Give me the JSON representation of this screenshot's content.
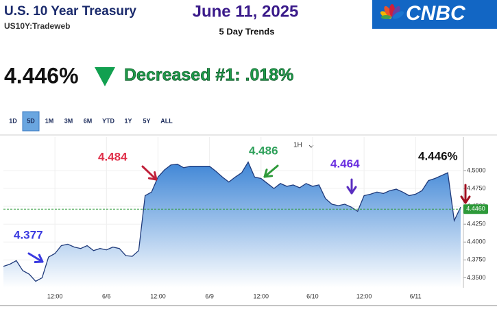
{
  "header": {
    "title": "U.S. 10 Year Treasury",
    "symbol": "US10Y:Tradeweb",
    "date": "June 11, 2025",
    "subtitle": "5 Day Trends",
    "logo": "CNBC",
    "price": "4.446%",
    "change": "Decreased #1:  .018%"
  },
  "ranges": [
    "1D",
    "5D",
    "1M",
    "3M",
    "6M",
    "YTD",
    "1Y",
    "5Y",
    "ALL"
  ],
  "active_range": "5D",
  "interval": "1H",
  "chart_data": {
    "type": "line",
    "categories": [
      null,
      null,
      null,
      null,
      null,
      null,
      null,
      null,
      "12:00",
      null,
      null,
      null,
      null,
      null,
      null,
      null,
      "6/6",
      null,
      null,
      null,
      null,
      null,
      null,
      null,
      "12:00",
      null,
      null,
      null,
      null,
      null,
      null,
      null,
      "6/9",
      null,
      null,
      null,
      null,
      null,
      null,
      null,
      "12:00",
      null,
      null,
      null,
      null,
      null,
      null,
      null,
      "6/10",
      null,
      null,
      null,
      null,
      null,
      null,
      null,
      "12:00",
      null,
      null,
      null,
      null,
      null,
      null,
      null,
      "6/11",
      null,
      null,
      null,
      null,
      null,
      null,
      null
    ],
    "series": [
      {
        "name": "US10Y",
        "color": "#1f3a7a",
        "values": [
          4.366,
          4.369,
          4.374,
          4.36,
          4.355,
          4.345,
          4.35,
          4.379,
          4.384,
          4.395,
          4.397,
          4.393,
          4.391,
          4.395,
          4.388,
          4.391,
          4.389,
          4.393,
          4.391,
          4.381,
          4.38,
          4.388,
          4.465,
          4.47,
          4.491,
          4.501,
          4.508,
          4.509,
          4.504,
          4.506,
          4.506,
          4.506,
          4.506,
          4.499,
          4.491,
          4.484,
          4.491,
          4.497,
          4.512,
          4.491,
          4.489,
          4.482,
          4.475,
          4.482,
          4.478,
          4.48,
          4.476,
          4.482,
          4.478,
          4.48,
          4.461,
          4.453,
          4.451,
          4.453,
          4.449,
          4.443,
          4.465,
          4.467,
          4.47,
          4.468,
          4.472,
          4.474,
          4.47,
          4.465,
          4.467,
          4.472,
          4.486,
          4.489,
          4.493,
          4.497,
          4.43,
          4.449
        ]
      }
    ],
    "ylim": [
      4.336,
      4.547
    ],
    "yticks": [
      {
        "value": 4.35,
        "label": "4.3500"
      },
      {
        "value": 4.375,
        "label": "4.3750"
      },
      {
        "value": 4.4,
        "label": "4.4000"
      },
      {
        "value": 4.425,
        "label": "4.4250"
      },
      {
        "value": 4.45,
        "label": "4.4500"
      },
      {
        "value": 4.475,
        "label": "4.4750"
      },
      {
        "value": 4.5,
        "label": "4.5000"
      }
    ],
    "current": {
      "value": 4.446,
      "label": "4.4460",
      "color": "#2e9a3a"
    },
    "annotations": [
      {
        "text": "4.377",
        "color": "#3a3ae0"
      },
      {
        "text": "4.484",
        "color": "#e0304a"
      },
      {
        "text": "4.486",
        "color": "#2ea05a"
      },
      {
        "text": "4.464",
        "color": "#6a2ee0"
      },
      {
        "text": "4.446%",
        "color": "#111111"
      }
    ]
  }
}
